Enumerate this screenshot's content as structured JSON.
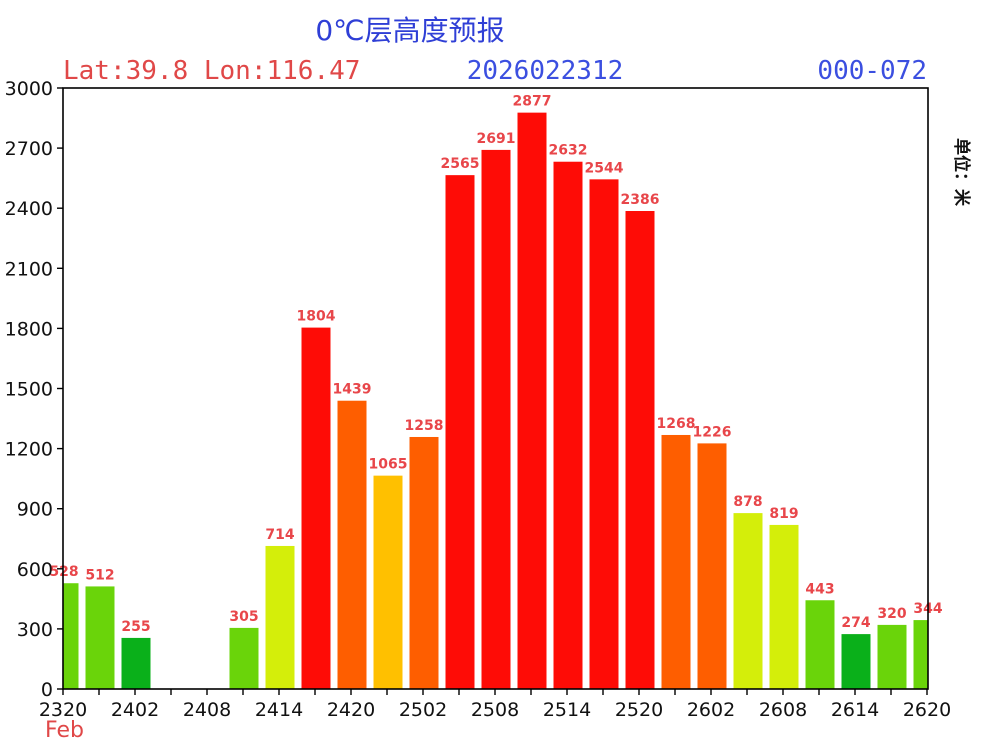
{
  "header": {
    "title": "0℃层高度预报",
    "location": "Lat:39.8 Lon:116.47",
    "init_time": "2026022312",
    "range": "000-072",
    "unit": "单位：米",
    "month": "Feb"
  },
  "chart_data": {
    "type": "bar",
    "title": "0℃层高度预报",
    "ylim": [
      0,
      3000
    ],
    "yticks": [
      0,
      300,
      600,
      900,
      1200,
      1500,
      1800,
      2100,
      2400,
      2700,
      3000
    ],
    "x_tick_labels": [
      "2320",
      "2402",
      "2408",
      "2414",
      "2420",
      "2502",
      "2508",
      "2514",
      "2520",
      "2602",
      "2608",
      "2614",
      "2620"
    ],
    "bars": [
      {
        "value": 528,
        "color": "#6ad40a"
      },
      {
        "value": 512,
        "color": "#6ad40a"
      },
      {
        "value": 255,
        "color": "#0ab01a"
      },
      {
        "value": null,
        "color": null
      },
      {
        "value": null,
        "color": null
      },
      {
        "value": 305,
        "color": "#6ad40a"
      },
      {
        "value": 714,
        "color": "#d4ee0a"
      },
      {
        "value": 1804,
        "color": "#fe0c06"
      },
      {
        "value": 1439,
        "color": "#fe5e00"
      },
      {
        "value": 1065,
        "color": "#ffc000"
      },
      {
        "value": 1258,
        "color": "#fe5e00"
      },
      {
        "value": 2565,
        "color": "#fe0c06"
      },
      {
        "value": 2691,
        "color": "#fe0c06"
      },
      {
        "value": 2877,
        "color": "#fe0c06"
      },
      {
        "value": 2632,
        "color": "#fe0c06"
      },
      {
        "value": 2544,
        "color": "#fe0c06"
      },
      {
        "value": 2386,
        "color": "#fe0c06"
      },
      {
        "value": 1268,
        "color": "#fe5e00"
      },
      {
        "value": 1226,
        "color": "#fe5e00"
      },
      {
        "value": 878,
        "color": "#d4ee0a"
      },
      {
        "value": 819,
        "color": "#d4ee0a"
      },
      {
        "value": 443,
        "color": "#6ad40a"
      },
      {
        "value": 274,
        "color": "#0ab01a"
      },
      {
        "value": 320,
        "color": "#6ad40a"
      },
      {
        "value": 344,
        "color": "#6ad40a"
      }
    ],
    "grid": false
  }
}
